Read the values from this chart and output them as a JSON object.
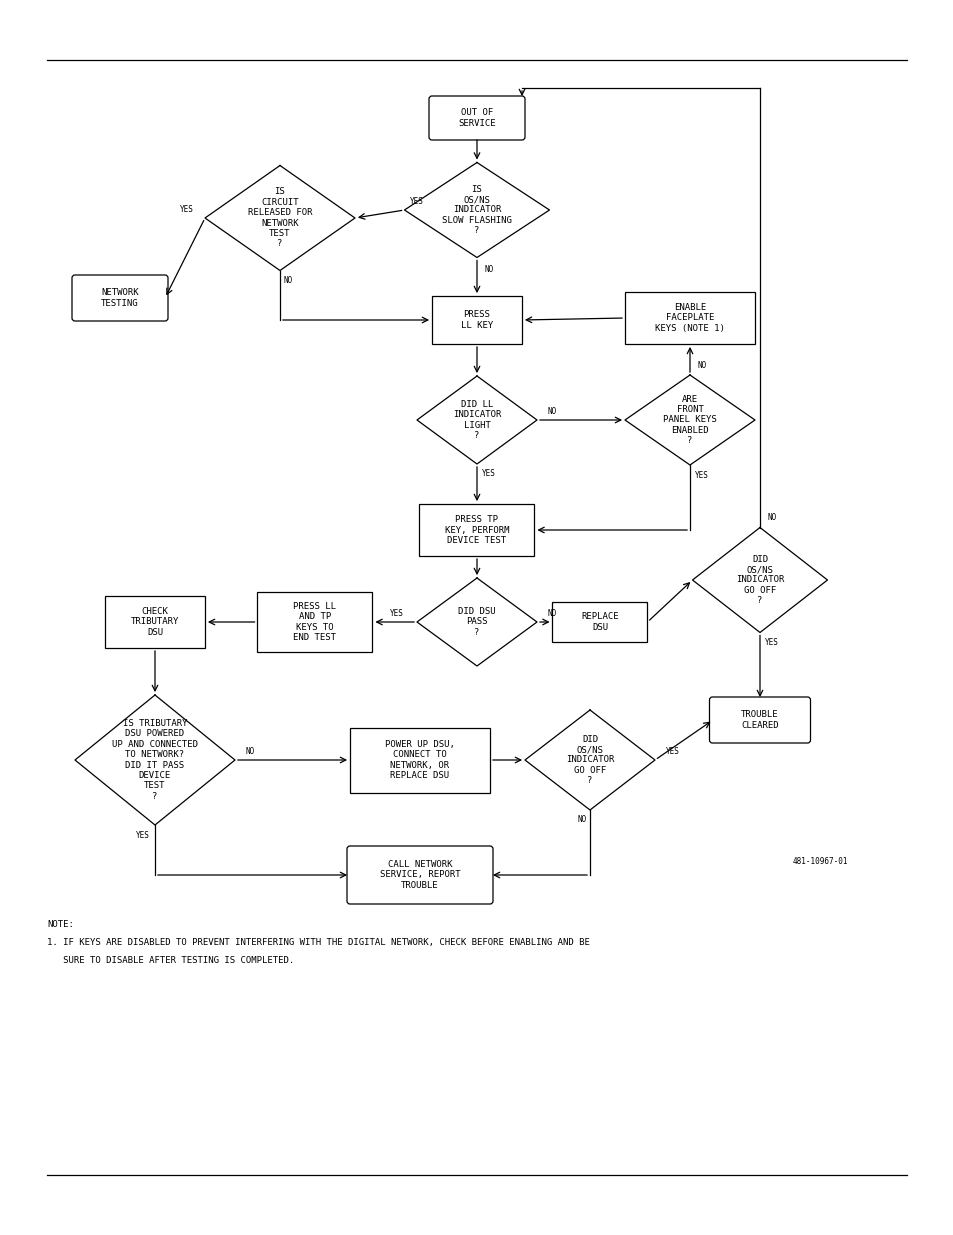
{
  "bg_color": "#ffffff",
  "line_color": "#000000",
  "text_color": "#000000",
  "font_size": 6.5,
  "figure_label": "481-10967-01",
  "note_line1": "NOTE:",
  "note_line2": "1. IF KEYS ARE DISABLED TO PREVENT INTERFERING WITH THE DIGITAL NETWORK, CHECK BEFORE ENABLING AND BE",
  "note_line3": "   SURE TO DISABLE AFTER TESTING IS COMPLETED."
}
